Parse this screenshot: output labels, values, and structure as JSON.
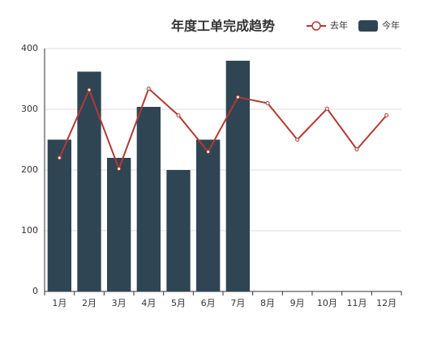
{
  "chart_data": {
    "type": "bar",
    "title": "年度工单完成趋势",
    "categories": [
      "1月",
      "2月",
      "3月",
      "4月",
      "5月",
      "6月",
      "7月",
      "8月",
      "9月",
      "10月",
      "11月",
      "12月"
    ],
    "series": [
      {
        "name": "去年",
        "type": "line",
        "color": "#b23a33",
        "values": [
          220,
          332,
          202,
          334,
          290,
          230,
          320,
          310,
          250,
          301,
          234,
          290
        ]
      },
      {
        "name": "今年",
        "type": "bar",
        "color": "#2f4554",
        "values": [
          250,
          362,
          220,
          304,
          200,
          250,
          380,
          null,
          null,
          null,
          null,
          null
        ]
      }
    ],
    "ylim": [
      0,
      400
    ],
    "yticks": [
      0,
      100,
      200,
      300,
      400
    ],
    "grid": true,
    "legend": "top-right"
  }
}
